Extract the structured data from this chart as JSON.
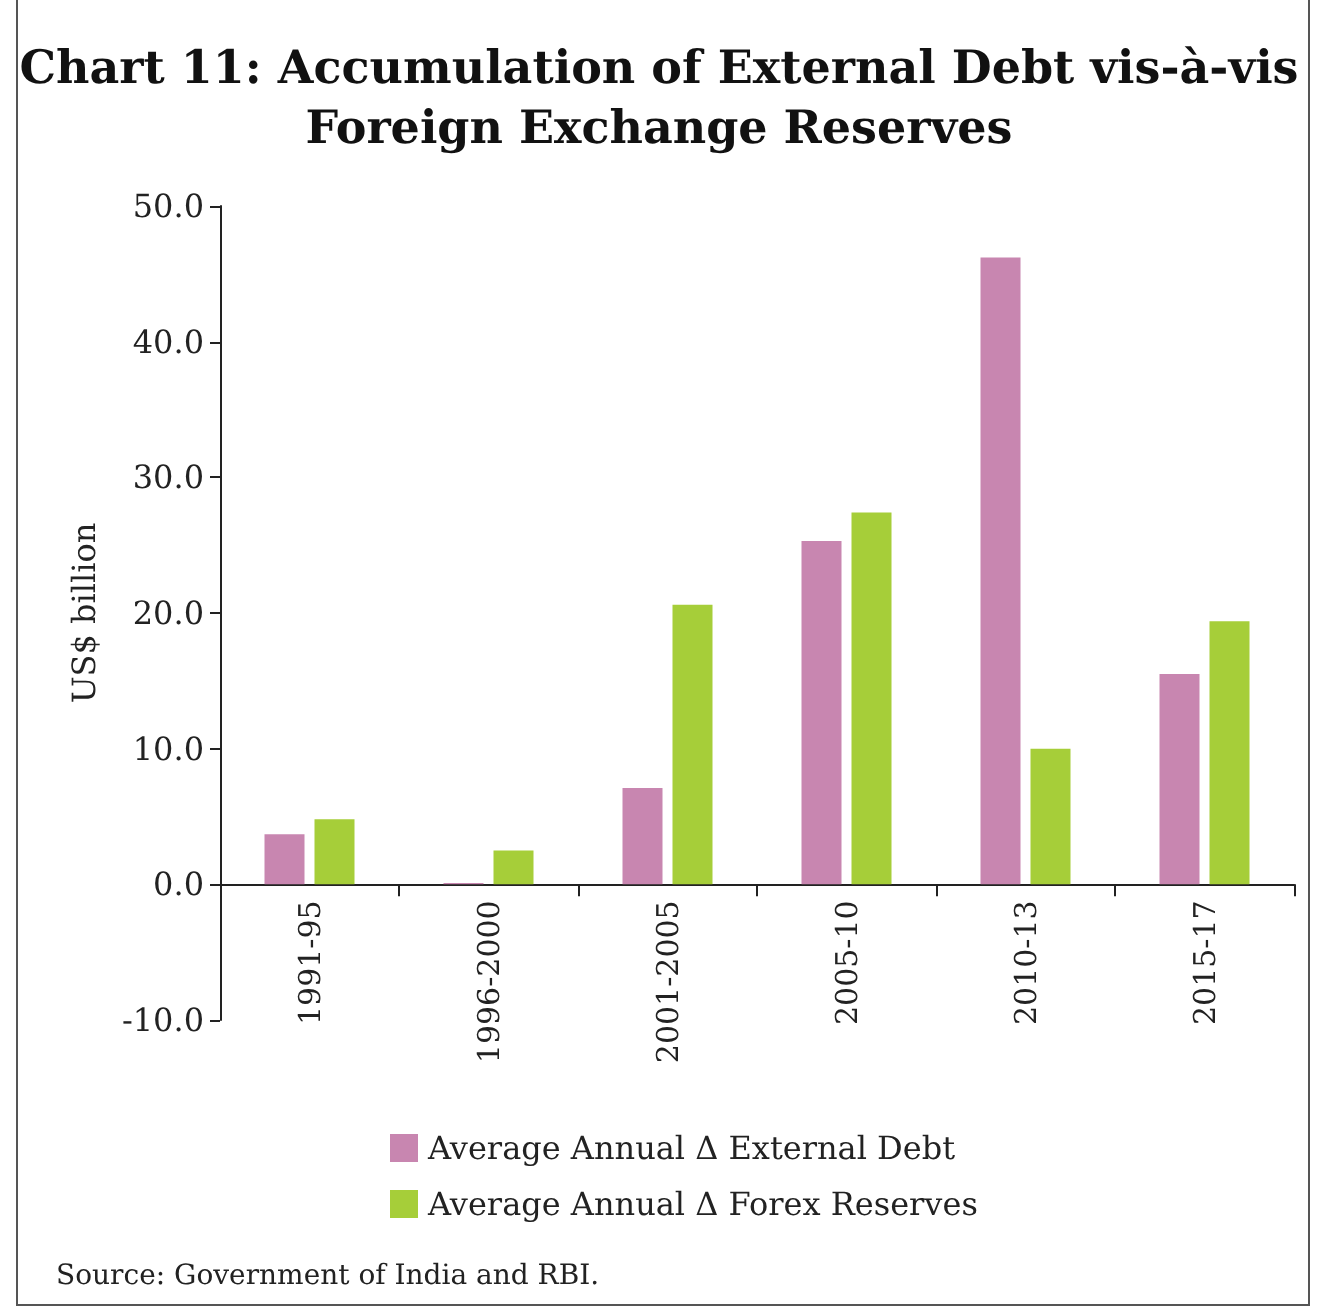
{
  "chart_data": {
    "type": "bar",
    "title": "Chart 11: Accumulation of External Debt vis-à-vis\nForeign Exchange Reserves",
    "ylabel": "US$ billion",
    "categories": [
      "1991-95",
      "1996-2000",
      "2001-2005",
      "2005-10",
      "2010-13",
      "2015-17"
    ],
    "series": [
      {
        "name": "Average Annual Δ External Debt",
        "color": "#c886b0",
        "values": [
          3.7,
          0.1,
          7.1,
          25.3,
          46.2,
          15.5
        ]
      },
      {
        "name": "Average Annual Δ Forex Reserves",
        "color": "#a6ce39",
        "values": [
          4.8,
          2.5,
          20.6,
          27.4,
          10.0,
          19.4
        ]
      }
    ],
    "ylim": [
      -10,
      50
    ],
    "yticks": [
      {
        "value": -10,
        "label": "-10.0"
      },
      {
        "value": 0,
        "label": "0.0"
      },
      {
        "value": 10,
        "label": "10.0"
      },
      {
        "value": 20,
        "label": "20.0"
      },
      {
        "value": 30,
        "label": "30.0"
      },
      {
        "value": 40,
        "label": "40.0"
      },
      {
        "value": 50,
        "label": "50.0"
      }
    ],
    "grid": false,
    "legend": "bottom",
    "annotations": [
      "Source: Government of India and RBI."
    ]
  }
}
